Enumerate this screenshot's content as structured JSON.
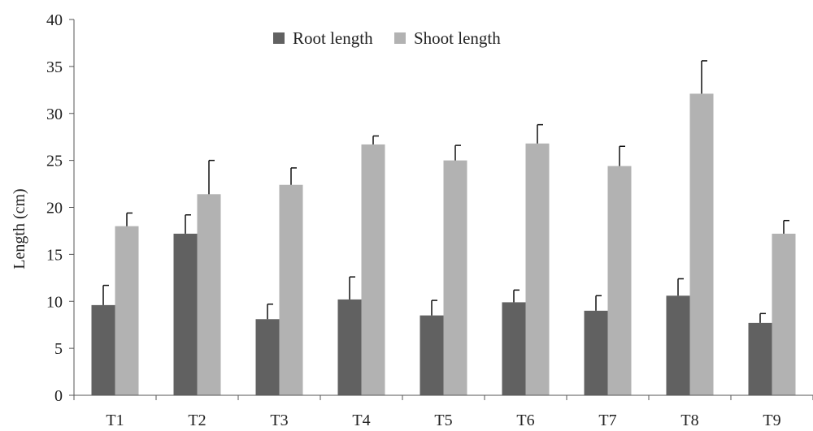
{
  "chart_data": {
    "type": "bar",
    "categories": [
      "T1",
      "T2",
      "T3",
      "T4",
      "T5",
      "T6",
      "T7",
      "T8",
      "T9"
    ],
    "series": [
      {
        "name": "Root length",
        "color": "#616161",
        "values": [
          9.6,
          17.2,
          8.1,
          10.2,
          8.5,
          9.9,
          9.0,
          10.6,
          7.7
        ],
        "errors": [
          2.1,
          2.0,
          1.6,
          2.4,
          1.6,
          1.3,
          1.6,
          1.8,
          1.0
        ]
      },
      {
        "name": "Shoot length",
        "color": "#b2b2b2",
        "values": [
          18.0,
          21.4,
          22.4,
          26.7,
          25.0,
          26.8,
          24.4,
          32.1,
          17.2
        ],
        "errors": [
          1.4,
          3.6,
          1.8,
          0.9,
          1.6,
          2.0,
          2.1,
          3.5,
          1.4
        ]
      }
    ],
    "title": "",
    "xlabel": "",
    "ylabel": "Length (cm)",
    "ylim": [
      0,
      40
    ],
    "yticks": [
      0,
      5,
      10,
      15,
      20,
      25,
      30,
      35,
      40
    ],
    "grid": false,
    "legend_position": "top-center",
    "error_bars": "upper"
  }
}
